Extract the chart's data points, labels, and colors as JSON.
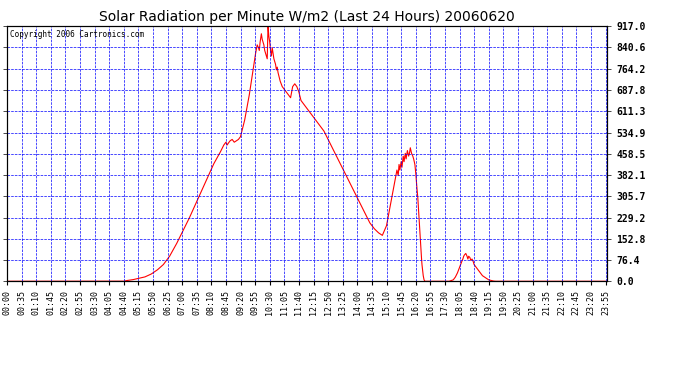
{
  "title": "Solar Radiation per Minute W/m2 (Last 24 Hours) 20060620",
  "copyright": "Copyright 2006 Cartronics.com",
  "y_ticks": [
    0.0,
    76.4,
    152.8,
    229.2,
    305.7,
    382.1,
    458.5,
    534.9,
    611.3,
    687.8,
    764.2,
    840.6,
    917.0
  ],
  "ymax": 917.0,
  "ymin": 0.0,
  "line_color": "#FF0000",
  "bg_color": "#FFFFFF",
  "plot_bg_color": "#FFFFFF",
  "grid_color": "#0000FF",
  "title_color": "#000000",
  "copyright_color": "#000000",
  "x_label_color": "#000000",
  "y_label_color": "#000000",
  "x_ticks": [
    "00:00",
    "00:35",
    "01:10",
    "01:45",
    "02:20",
    "02:55",
    "03:30",
    "04:05",
    "04:40",
    "05:15",
    "05:50",
    "06:25",
    "07:00",
    "07:35",
    "08:10",
    "08:45",
    "09:20",
    "09:55",
    "10:30",
    "11:05",
    "11:40",
    "12:15",
    "12:50",
    "13:25",
    "14:00",
    "14:35",
    "15:10",
    "15:45",
    "16:20",
    "16:55",
    "17:30",
    "18:05",
    "18:40",
    "19:15",
    "19:50",
    "20:25",
    "21:00",
    "21:35",
    "22:10",
    "22:45",
    "23:20",
    "23:55"
  ],
  "key_points": [
    [
      0,
      0
    ],
    [
      279,
      0
    ],
    [
      285,
      2
    ],
    [
      300,
      5
    ],
    [
      315,
      10
    ],
    [
      330,
      15
    ],
    [
      345,
      25
    ],
    [
      360,
      40
    ],
    [
      375,
      60
    ],
    [
      390,
      90
    ],
    [
      405,
      130
    ],
    [
      420,
      175
    ],
    [
      435,
      220
    ],
    [
      450,
      270
    ],
    [
      465,
      320
    ],
    [
      480,
      370
    ],
    [
      495,
      420
    ],
    [
      510,
      460
    ],
    [
      520,
      490
    ],
    [
      525,
      500
    ],
    [
      528,
      490
    ],
    [
      530,
      495
    ],
    [
      535,
      505
    ],
    [
      540,
      510
    ],
    [
      545,
      500
    ],
    [
      550,
      505
    ],
    [
      555,
      510
    ],
    [
      560,
      520
    ],
    [
      565,
      550
    ],
    [
      570,
      580
    ],
    [
      575,
      620
    ],
    [
      580,
      660
    ],
    [
      585,
      710
    ],
    [
      590,
      760
    ],
    [
      595,
      810
    ],
    [
      600,
      850
    ],
    [
      603,
      840
    ],
    [
      605,
      830
    ],
    [
      607,
      860
    ],
    [
      610,
      890
    ],
    [
      612,
      870
    ],
    [
      614,
      860
    ],
    [
      616,
      850
    ],
    [
      618,
      830
    ],
    [
      620,
      820
    ],
    [
      622,
      810
    ],
    [
      624,
      800
    ],
    [
      626,
      917
    ],
    [
      628,
      880
    ],
    [
      630,
      860
    ],
    [
      632,
      830
    ],
    [
      634,
      810
    ],
    [
      636,
      840
    ],
    [
      638,
      820
    ],
    [
      640,
      800
    ],
    [
      642,
      790
    ],
    [
      644,
      780
    ],
    [
      646,
      760
    ],
    [
      648,
      770
    ],
    [
      650,
      750
    ],
    [
      655,
      720
    ],
    [
      660,
      700
    ],
    [
      665,
      690
    ],
    [
      670,
      680
    ],
    [
      675,
      670
    ],
    [
      680,
      660
    ],
    [
      685,
      700
    ],
    [
      690,
      710
    ],
    [
      695,
      700
    ],
    [
      700,
      680
    ],
    [
      705,
      650
    ],
    [
      710,
      640
    ],
    [
      715,
      630
    ],
    [
      720,
      620
    ],
    [
      725,
      610
    ],
    [
      730,
      600
    ],
    [
      740,
      580
    ],
    [
      750,
      560
    ],
    [
      760,
      540
    ],
    [
      770,
      510
    ],
    [
      780,
      480
    ],
    [
      790,
      450
    ],
    [
      800,
      420
    ],
    [
      810,
      390
    ],
    [
      820,
      360
    ],
    [
      830,
      330
    ],
    [
      840,
      300
    ],
    [
      850,
      270
    ],
    [
      860,
      240
    ],
    [
      870,
      210
    ],
    [
      880,
      190
    ],
    [
      890,
      175
    ],
    [
      900,
      165
    ],
    [
      910,
      200
    ],
    [
      920,
      280
    ],
    [
      930,
      360
    ],
    [
      935,
      400
    ],
    [
      938,
      380
    ],
    [
      940,
      420
    ],
    [
      942,
      400
    ],
    [
      945,
      430
    ],
    [
      947,
      410
    ],
    [
      950,
      450
    ],
    [
      952,
      430
    ],
    [
      955,
      460
    ],
    [
      957,
      440
    ],
    [
      960,
      470
    ],
    [
      963,
      450
    ],
    [
      965,
      460
    ],
    [
      967,
      480
    ],
    [
      970,
      460
    ],
    [
      973,
      450
    ],
    [
      975,
      440
    ],
    [
      978,
      420
    ],
    [
      980,
      390
    ],
    [
      982,
      350
    ],
    [
      985,
      300
    ],
    [
      987,
      250
    ],
    [
      990,
      180
    ],
    [
      992,
      120
    ],
    [
      995,
      60
    ],
    [
      998,
      20
    ],
    [
      1000,
      5
    ],
    [
      1002,
      0
    ],
    [
      1020,
      0
    ],
    [
      1050,
      0
    ],
    [
      1060,
      0
    ],
    [
      1070,
      5
    ],
    [
      1075,
      15
    ],
    [
      1080,
      30
    ],
    [
      1085,
      50
    ],
    [
      1090,
      70
    ],
    [
      1093,
      80
    ],
    [
      1095,
      90
    ],
    [
      1097,
      95
    ],
    [
      1100,
      100
    ],
    [
      1103,
      90
    ],
    [
      1105,
      80
    ],
    [
      1107,
      90
    ],
    [
      1110,
      85
    ],
    [
      1112,
      75
    ],
    [
      1115,
      80
    ],
    [
      1118,
      70
    ],
    [
      1120,
      60
    ],
    [
      1125,
      50
    ],
    [
      1130,
      40
    ],
    [
      1135,
      30
    ],
    [
      1140,
      20
    ],
    [
      1145,
      15
    ],
    [
      1150,
      10
    ],
    [
      1155,
      5
    ],
    [
      1160,
      3
    ],
    [
      1165,
      1
    ],
    [
      1170,
      0
    ],
    [
      1439,
      0
    ]
  ]
}
